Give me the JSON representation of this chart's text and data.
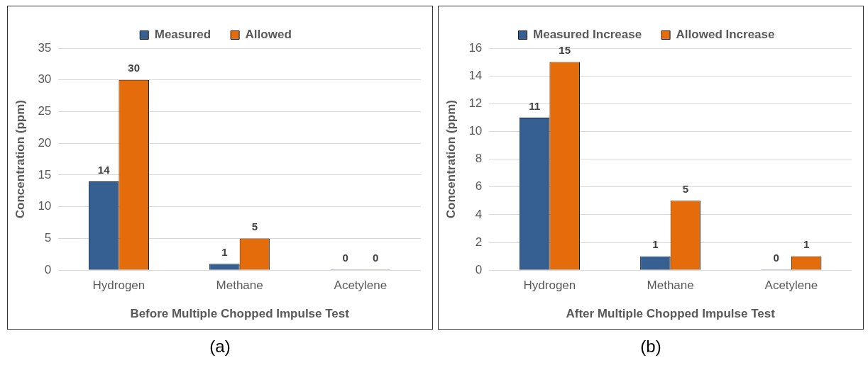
{
  "chart_data": [
    {
      "type": "bar",
      "xlabel": "Before Multiple Chopped Impulse Test",
      "ylabel": "Concentration (ppm)",
      "categories": [
        "Hydrogen",
        "Methane",
        "Acetylene"
      ],
      "series": [
        {
          "name": "Measured",
          "color": "#376092",
          "values": [
            14,
            1,
            0
          ]
        },
        {
          "name": "Allowed",
          "color": "#e46c0a",
          "values": [
            30,
            5,
            0
          ]
        }
      ],
      "ylim": [
        0,
        35
      ],
      "yticks": [
        0,
        5,
        10,
        15,
        20,
        25,
        30,
        35
      ],
      "grid": "y",
      "legend": "top",
      "data_labels": true,
      "annotations": [
        "(a)"
      ]
    },
    {
      "type": "bar",
      "xlabel": "After Multiple Chopped Impulse Test",
      "ylabel": "Concentration (ppm)",
      "categories": [
        "Hydrogen",
        "Methane",
        "Acetylene"
      ],
      "series": [
        {
          "name": "Measured Increase",
          "color": "#376092",
          "values": [
            11,
            1,
            0
          ]
        },
        {
          "name": "Allowed Increase",
          "color": "#e46c0a",
          "values": [
            15,
            5,
            1
          ]
        }
      ],
      "ylim": [
        0,
        16
      ],
      "yticks": [
        0,
        2,
        4,
        6,
        8,
        10,
        12,
        14,
        16
      ],
      "grid": "y",
      "legend": "top",
      "data_labels": true,
      "annotations": [
        "(b)"
      ]
    }
  ]
}
